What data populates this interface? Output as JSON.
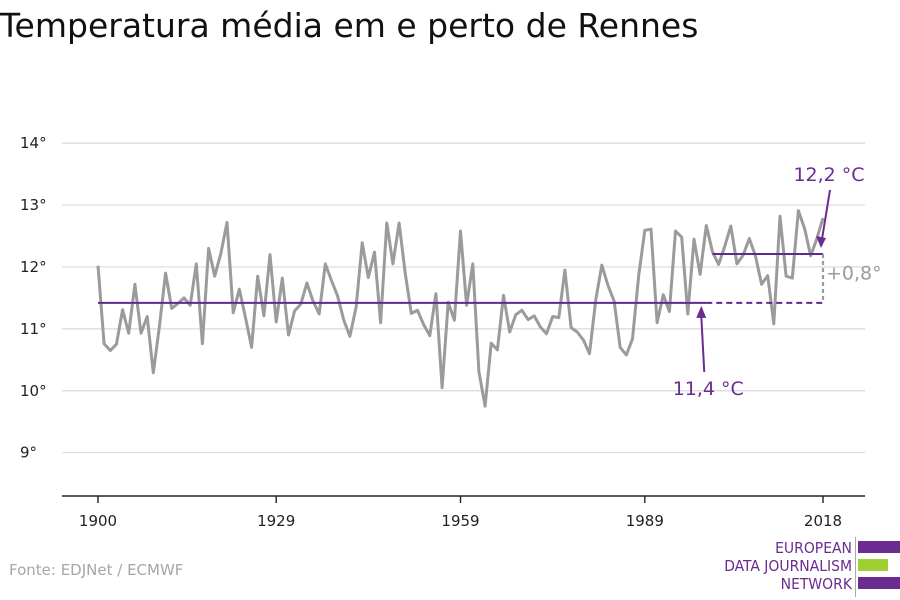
{
  "title": "Temperatura média em e perto de Rennes",
  "source": "Fonte: EDJNet / ECMWF",
  "logo": {
    "lines": [
      "EUROPEAN",
      "DATA JOURNALISM",
      "NETWORK"
    ],
    "colors": [
      "#6b2c91",
      "#9ed030",
      "#6b2c91"
    ]
  },
  "colors": {
    "series": "#9b9b9b",
    "reference": "#5e2a8e",
    "annotation": "#6b2c91",
    "difference": "#9b9b9b",
    "grid": "#d9d9d9"
  },
  "chart_data": {
    "type": "line",
    "xlim": [
      1900,
      2018
    ],
    "ylim": [
      8.3,
      14.6
    ],
    "x_ticks": [
      1900,
      1929,
      1959,
      1989,
      2018
    ],
    "x_tick_labels": [
      "1900",
      "1929",
      "1959",
      "1989",
      "2018"
    ],
    "y_ticks": [
      9,
      10,
      11,
      12,
      13,
      14
    ],
    "y_tick_labels": [
      "9°",
      "10°",
      "11°",
      "12°",
      "13°",
      "14°"
    ],
    "grid": "horizontal",
    "series": [
      {
        "x": [
          1900,
          1901,
          1902,
          1903,
          1904,
          1905,
          1906,
          1907,
          1908,
          1909,
          1910,
          1911,
          1912,
          1913,
          1914,
          1915,
          1916,
          1917,
          1918,
          1919,
          1920,
          1921,
          1922,
          1923,
          1924,
          1925,
          1926,
          1927,
          1928,
          1929,
          1930,
          1931,
          1932,
          1933,
          1934,
          1935,
          1936,
          1937,
          1938,
          1939,
          1940,
          1941,
          1942,
          1943,
          1944,
          1945,
          1946,
          1947,
          1948,
          1949,
          1950,
          1951,
          1952,
          1953,
          1954,
          1955,
          1956,
          1957,
          1958,
          1959,
          1960,
          1961,
          1962,
          1963,
          1964,
          1965,
          1966,
          1967,
          1968,
          1969,
          1970,
          1971,
          1972,
          1973,
          1974,
          1975,
          1976,
          1977,
          1978,
          1979,
          1980,
          1981,
          1982,
          1983,
          1984,
          1985,
          1986,
          1987,
          1988,
          1989,
          1990,
          1991,
          1992,
          1993,
          1994,
          1995,
          1996,
          1997,
          1998,
          1999,
          2000,
          2001,
          2002,
          2003,
          2004,
          2005,
          2006,
          2007,
          2008,
          2009,
          2010,
          2011,
          2012,
          2013,
          2014,
          2015,
          2016,
          2017,
          2018
        ],
        "values": [
          12.02,
          10.76,
          10.65,
          10.75,
          11.31,
          10.93,
          11.72,
          10.93,
          11.2,
          10.29,
          11.04,
          11.9,
          11.33,
          11.41,
          11.5,
          11.38,
          12.05,
          10.76,
          12.3,
          11.85,
          12.22,
          12.72,
          11.26,
          11.64,
          11.18,
          10.7,
          11.85,
          11.21,
          12.2,
          11.11,
          11.82,
          10.9,
          11.29,
          11.4,
          11.74,
          11.45,
          11.24,
          12.05,
          11.78,
          11.53,
          11.14,
          10.88,
          11.35,
          12.39,
          11.83,
          12.24,
          11.1,
          12.71,
          12.05,
          12.71,
          11.9,
          11.25,
          11.3,
          11.07,
          10.89,
          11.57,
          10.05,
          11.43,
          11.14,
          12.58,
          11.38,
          12.05,
          10.31,
          9.75,
          10.77,
          10.66,
          11.54,
          10.95,
          11.23,
          11.3,
          11.15,
          11.21,
          11.03,
          10.92,
          11.2,
          11.18,
          11.95,
          11.02,
          10.95,
          10.82,
          10.6,
          11.46,
          12.03,
          11.7,
          11.45,
          10.7,
          10.58,
          10.84,
          11.86,
          12.59,
          12.61,
          11.1,
          11.55,
          11.28,
          12.58,
          12.48,
          11.24,
          12.45,
          11.88,
          12.67,
          12.25,
          12.04,
          12.33,
          12.66,
          12.05,
          12.19,
          12.46,
          12.18,
          11.72,
          11.86,
          11.08,
          12.82,
          11.85,
          11.82,
          12.91,
          12.62,
          12.18,
          12.46,
          12.79
        ]
      }
    ],
    "reference_line": {
      "start": 1900,
      "end": 1999,
      "dashed_end": 2018,
      "value": 11.42
    },
    "recent_line": {
      "start": 2000,
      "end": 2018,
      "value": 12.21
    },
    "annotations": {
      "recent_label": "12,2 °C",
      "reference_label": "11,4 °C",
      "difference_label": "+0,8°"
    }
  }
}
